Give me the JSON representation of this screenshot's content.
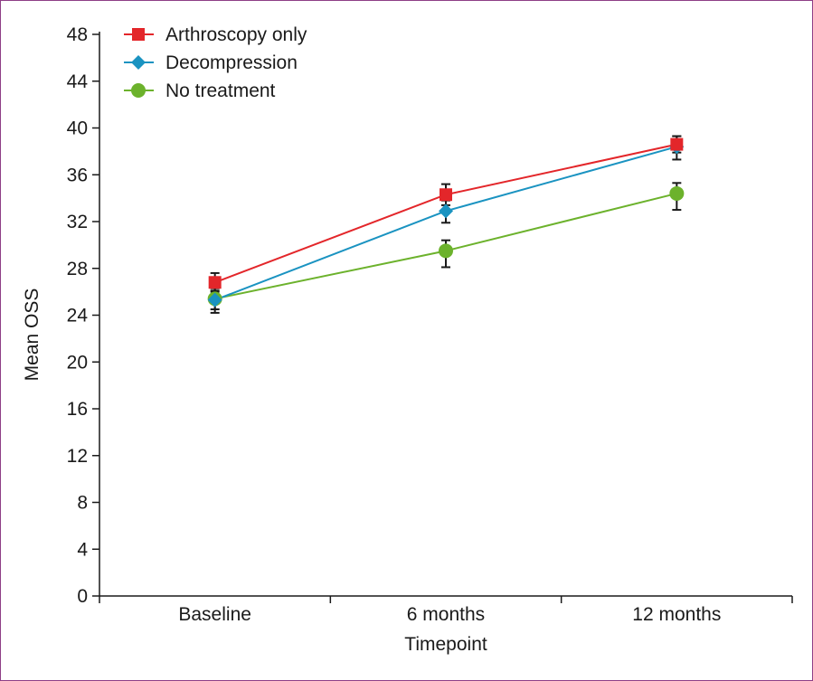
{
  "chart_data": {
    "type": "line",
    "title": "",
    "xlabel": "Timepoint",
    "ylabel": "Mean OSS",
    "categories": [
      "Baseline",
      "6 months",
      "12 months"
    ],
    "ylim": [
      0,
      48
    ],
    "yticks": [
      0,
      4,
      8,
      12,
      16,
      20,
      24,
      28,
      32,
      36,
      40,
      44,
      48
    ],
    "grid": false,
    "legend_position": "top-left",
    "series": [
      {
        "name": "Arthroscopy only",
        "marker": "square",
        "color": "#e3262a",
        "values": [
          26.8,
          34.3,
          38.6
        ],
        "err_low": [
          26.0,
          33.4,
          37.9
        ],
        "err_high": [
          27.6,
          35.2,
          39.3
        ]
      },
      {
        "name": "Decompression",
        "marker": "diamond",
        "color": "#1a93c1",
        "values": [
          25.3,
          32.9,
          38.4
        ],
        "err_low": [
          24.5,
          31.9,
          37.3
        ],
        "err_high": [
          26.1,
          33.8,
          39.3
        ]
      },
      {
        "name": "No treatment",
        "marker": "circle",
        "color": "#6cb22c",
        "values": [
          25.4,
          29.5,
          34.4
        ],
        "err_low": [
          24.2,
          28.1,
          33.0
        ],
        "err_high": [
          26.3,
          30.4,
          35.3
        ]
      }
    ]
  }
}
